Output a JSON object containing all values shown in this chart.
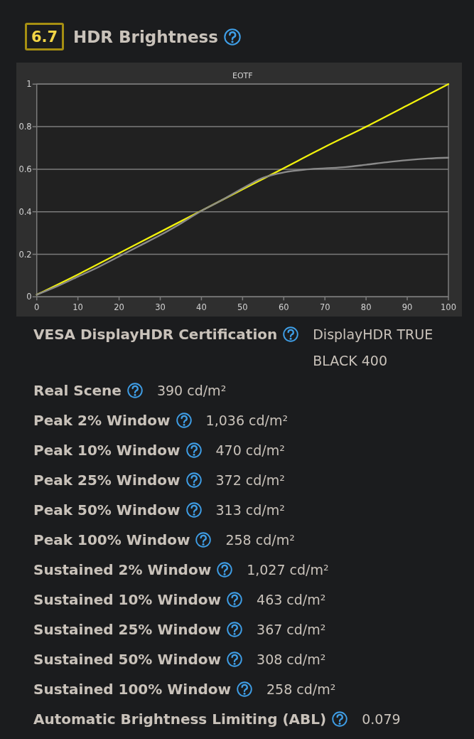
{
  "chart_data": [
    {
      "type": "other",
      "title": "HDR Brightness",
      "annotations": [
        "6.7"
      ]
    },
    {
      "type": "line",
      "title": "EOTF",
      "xlim": [
        0,
        100
      ],
      "ylim": [
        0,
        1
      ],
      "xticks": [
        0,
        10,
        20,
        30,
        40,
        50,
        60,
        70,
        80,
        90,
        100
      ],
      "yticks": [
        0,
        0.2,
        0.4,
        0.6,
        0.8,
        1
      ],
      "grid": "y",
      "series": [
        {
          "color": "#f2f20c",
          "x": [
            0,
            10,
            20,
            30,
            40,
            50,
            60,
            70,
            80,
            90,
            100
          ],
          "values": [
            0.01,
            0.105,
            0.205,
            0.305,
            0.405,
            0.505,
            0.605,
            0.705,
            0.8,
            0.9,
            1
          ]
        },
        {
          "color": "#8a8a8a",
          "x": [
            0,
            5,
            10,
            15,
            20,
            25,
            30,
            35,
            40,
            45,
            50,
            55,
            60,
            65,
            70,
            75,
            80,
            85,
            90,
            95,
            100
          ],
          "values": [
            0.01,
            0.05,
            0.095,
            0.14,
            0.19,
            0.24,
            0.29,
            0.345,
            0.404,
            0.455,
            0.51,
            0.56,
            0.585,
            0.598,
            0.604,
            0.61,
            0.621,
            0.633,
            0.643,
            0.65,
            0.654
          ]
        }
      ]
    },
    {
      "type": "other",
      "annotations": [
        "VESA DisplayHDR Certification",
        "DisplayHDR TRUE BLACK 400",
        "Real Scene",
        "390 cd/m²",
        "Peak 2% Window",
        "1,036 cd/m²",
        "Peak 10% Window",
        "470 cd/m²",
        "Peak 25% Window",
        "372 cd/m²",
        "Peak 50% Window",
        "313 cd/m²",
        "Peak 100% Window",
        "258 cd/m²",
        "Sustained 2% Window",
        "1,027 cd/m²",
        "Sustained 10% Window",
        "463 cd/m²",
        "Sustained 25% Window",
        "367 cd/m²",
        "Sustained 50% Window",
        "308 cd/m²",
        "Sustained 100% Window",
        "258 cd/m²",
        "Automatic Brightness Limiting (ABL)",
        "0.079"
      ]
    }
  ]
}
